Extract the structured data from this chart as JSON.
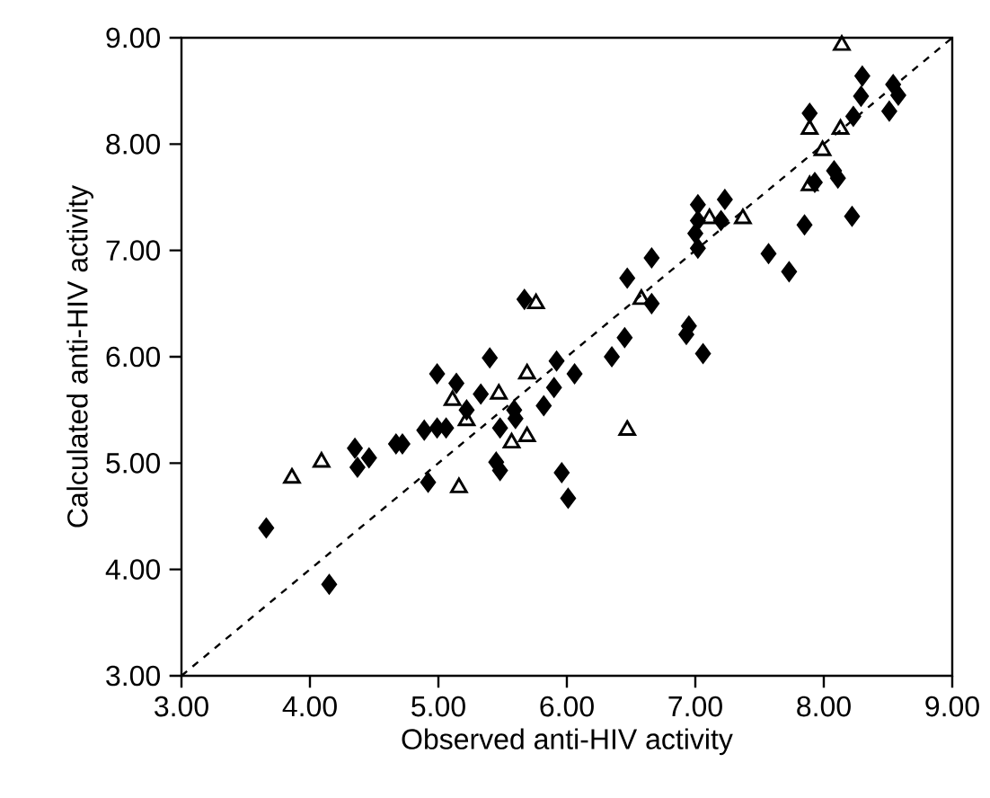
{
  "chart_data": {
    "type": "scatter",
    "xlabel": "Observed anti-HIV activity",
    "ylabel": "Calculated anti-HIV activity",
    "xlim": [
      3,
      9
    ],
    "ylim": [
      3,
      9
    ],
    "xticks": [
      {
        "value": 3,
        "label": "3.00"
      },
      {
        "value": 4,
        "label": "4.00"
      },
      {
        "value": 5,
        "label": "5.00"
      },
      {
        "value": 6,
        "label": "6.00"
      },
      {
        "value": 7,
        "label": "7.00"
      },
      {
        "value": 8,
        "label": "8.00"
      },
      {
        "value": 9,
        "label": "9.00"
      }
    ],
    "yticks": [
      {
        "value": 3,
        "label": "3.00"
      },
      {
        "value": 4,
        "label": "4.00"
      },
      {
        "value": 5,
        "label": "5.00"
      },
      {
        "value": 6,
        "label": "6.00"
      },
      {
        "value": 7,
        "label": "7.00"
      },
      {
        "value": 8,
        "label": "8.00"
      },
      {
        "value": 9,
        "label": "9.00"
      }
    ],
    "series": [
      {
        "marker": "diamond",
        "color": "#000000",
        "x": [
          8.3,
          8.29,
          8.54,
          8.58,
          8.51,
          8.23,
          7.89,
          7.93,
          8.08,
          8.11,
          8.22,
          7.85,
          7.57,
          7.73,
          7.02,
          7.23,
          7.2,
          7.02,
          7.0,
          7.02,
          6.66,
          6.47,
          6.66,
          6.45,
          6.35,
          6.95,
          6.93,
          7.06,
          5.67,
          5.92,
          6.06,
          5.9,
          5.82,
          5.96,
          6.01,
          5.4,
          4.99,
          5.14,
          5.33,
          5.22,
          5.59,
          5.6,
          5.48,
          4.89,
          4.99,
          5.06,
          4.67,
          4.72,
          4.35,
          4.37,
          4.46,
          4.92,
          5.45,
          5.48,
          3.66,
          4.15
        ],
        "values": [
          8.64,
          8.45,
          8.56,
          8.46,
          8.31,
          8.26,
          8.29,
          7.64,
          7.75,
          7.68,
          7.32,
          7.24,
          6.97,
          6.8,
          7.43,
          7.48,
          7.28,
          7.28,
          7.16,
          7.02,
          6.93,
          6.74,
          6.5,
          6.18,
          6.0,
          6.29,
          6.21,
          6.03,
          6.54,
          5.96,
          5.84,
          5.71,
          5.54,
          4.91,
          4.67,
          5.99,
          5.84,
          5.75,
          5.65,
          5.5,
          5.5,
          5.42,
          5.33,
          5.31,
          5.33,
          5.33,
          5.18,
          5.18,
          5.14,
          4.96,
          5.05,
          4.82,
          5.01,
          4.93,
          4.39,
          3.86
        ]
      },
      {
        "marker": "triangle",
        "color": "#000000",
        "x": [
          8.14,
          7.89,
          8.13,
          7.99,
          7.89,
          7.11,
          7.37,
          6.58,
          5.76,
          5.69,
          5.69,
          6.47,
          5.11,
          5.47,
          5.22,
          5.57,
          3.86,
          4.09,
          5.16
        ],
        "values": [
          8.93,
          8.14,
          8.14,
          7.94,
          7.61,
          7.3,
          7.3,
          6.54,
          6.5,
          5.84,
          5.25,
          5.31,
          5.59,
          5.65,
          5.4,
          5.19,
          4.86,
          5.01,
          4.77
        ]
      },
      {
        "type": "line",
        "marker": "none",
        "line_style": "dashed",
        "color": "#000000",
        "x": [
          3,
          9
        ],
        "values": [
          3,
          9
        ]
      }
    ]
  }
}
